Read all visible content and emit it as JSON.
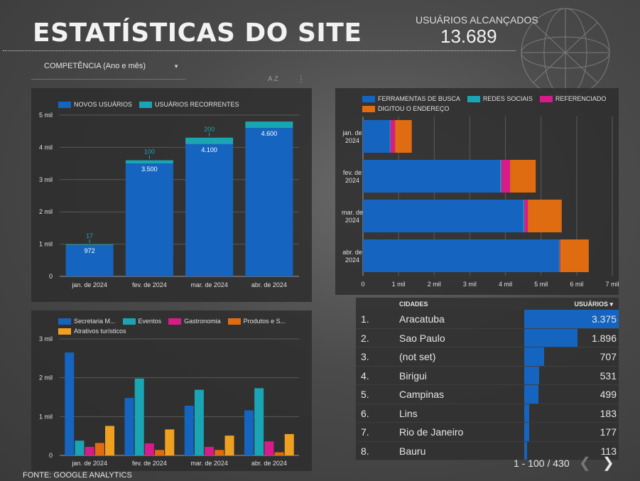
{
  "header": {
    "title": "ESTATÍSTICAS DO SITE",
    "kpi_label": "USUÁRIOS ALCANÇADOS",
    "kpi_value": "13.689"
  },
  "filter": {
    "label": "COMPETÊNCIA (Ano e mês)"
  },
  "toolbar": {
    "sort_label": "A Z"
  },
  "footer": {
    "source": "FONTE: GOOGLE ANALYTICS"
  },
  "colors": {
    "blue": "#1565c0",
    "teal": "#1aa5b5",
    "magenta": "#d81b8a",
    "orange": "#e06c12",
    "gold": "#f0a020"
  },
  "chart_data": [
    {
      "type": "bar",
      "stacked": true,
      "categories": [
        "jan. de 2024",
        "fev. de 2024",
        "mar. de 2024",
        "abr. de 2024"
      ],
      "series": [
        {
          "name": "NOVOS USUÁRIOS",
          "values": [
            972,
            3500,
            4100,
            4600
          ],
          "labels": [
            "972",
            "3.500",
            "4.100",
            "4.600"
          ]
        },
        {
          "name": "USUÁRIOS RECORRENTES",
          "values": [
            17,
            100,
            200,
            200
          ],
          "labels": [
            "17",
            "100",
            "200",
            ""
          ]
        }
      ],
      "yticks": [
        "0",
        "1 mil",
        "2 mil",
        "3 mil",
        "4 mil",
        "5 mil"
      ],
      "ylim": [
        0,
        5000
      ],
      "legend": "top-left",
      "grid": true
    },
    {
      "type": "bar",
      "orientation": "horizontal",
      "stacked": true,
      "categories": [
        [
          "jan. de",
          "2024"
        ],
        [
          "fev. de",
          "2024"
        ],
        [
          "mar. de",
          "2024"
        ],
        [
          "abr. de",
          "2024"
        ]
      ],
      "series": [
        {
          "name": "FERRAMENTAS DE BUSCA",
          "values": [
            750,
            3850,
            4500,
            5500
          ]
        },
        {
          "name": "REDES SOCIAIS",
          "values": [
            20,
            30,
            30,
            20
          ]
        },
        {
          "name": "REFERENCIADO",
          "values": [
            130,
            250,
            100,
            20
          ]
        },
        {
          "name": "DIGITOU O ENDEREÇO",
          "values": [
            470,
            720,
            950,
            800
          ]
        }
      ],
      "xticks": [
        "0",
        "1 mil",
        "2 mil",
        "3 mil",
        "4 mil",
        "5 mil",
        "6 mil",
        "7 mil"
      ],
      "xlim": [
        0,
        7000
      ],
      "legend": "top-left",
      "grid": true
    },
    {
      "type": "bar",
      "grouped": true,
      "categories": [
        "jan. de 2024",
        "fev. de 2024",
        "mar. de 2024",
        "abr. de 2024"
      ],
      "series": [
        {
          "name": "Secretaria M...",
          "values": [
            2650,
            1480,
            1280,
            1160
          ]
        },
        {
          "name": "Eventos",
          "values": [
            380,
            1980,
            1690,
            1730
          ]
        },
        {
          "name": "Gastronomia",
          "values": [
            220,
            310,
            220,
            360
          ]
        },
        {
          "name": "Produtos e S...",
          "values": [
            320,
            140,
            140,
            80
          ]
        },
        {
          "name": "Atrativos turísticos",
          "values": [
            760,
            670,
            510,
            550
          ]
        }
      ],
      "yticks": [
        "0",
        "1 mil",
        "2 mil",
        "3 mil"
      ],
      "ylim": [
        0,
        3000
      ],
      "legend": "top-left",
      "grid": true
    },
    {
      "type": "table",
      "columns": [
        "CIDADES",
        "USUÁRIOS ▾"
      ],
      "rows": [
        {
          "rank": "1.",
          "city": "Aracatuba",
          "users": "3.375",
          "value": 3375
        },
        {
          "rank": "2.",
          "city": "Sao Paulo",
          "users": "1.896",
          "value": 1896
        },
        {
          "rank": "3.",
          "city": "(not set)",
          "users": "707",
          "value": 707
        },
        {
          "rank": "4.",
          "city": "Birigui",
          "users": "531",
          "value": 531
        },
        {
          "rank": "5.",
          "city": "Campinas",
          "users": "499",
          "value": 499
        },
        {
          "rank": "6.",
          "city": "Lins",
          "users": "183",
          "value": 183
        },
        {
          "rank": "7.",
          "city": "Rio de Janeiro",
          "users": "177",
          "value": 177
        },
        {
          "rank": "8.",
          "city": "Bauru",
          "users": "113",
          "value": 113
        }
      ],
      "pagination": "1 - 100 / 430"
    }
  ]
}
